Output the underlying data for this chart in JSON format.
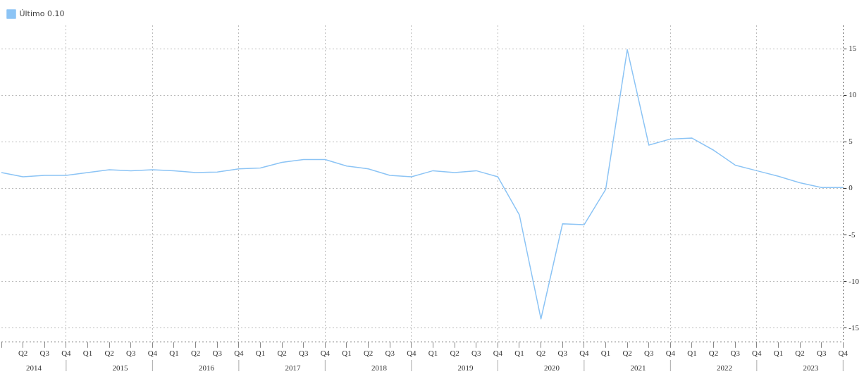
{
  "chart_data": {
    "type": "line",
    "categories": [
      null,
      "Q2",
      "Q3",
      "Q4",
      "Q1",
      "Q2",
      "Q3",
      "Q4",
      "Q1",
      "Q2",
      "Q3",
      "Q4",
      "Q1",
      "Q2",
      "Q3",
      "Q4",
      "Q1",
      "Q2",
      "Q3",
      "Q4",
      "Q1",
      "Q2",
      "Q3",
      "Q4",
      "Q1",
      "Q2",
      "Q3",
      "Q4",
      "Q1",
      "Q2",
      "Q3",
      "Q4",
      "Q1",
      "Q2",
      "Q3",
      "Q4",
      "Q1",
      "Q2",
      "Q3",
      "Q4"
    ],
    "annotations": [
      "2014",
      "2015",
      "2016",
      "2017",
      "2018",
      "2019",
      "2020",
      "2021",
      "2022",
      "2023"
    ],
    "series": [
      {
        "name": "Último 0.10",
        "color": "#8cc4f5",
        "values": [
          1.7,
          1.25,
          1.4,
          1.4,
          1.7,
          2.0,
          1.9,
          2.0,
          1.9,
          1.7,
          1.75,
          2.1,
          2.2,
          2.8,
          3.1,
          3.1,
          2.4,
          2.1,
          1.4,
          1.25,
          1.9,
          1.7,
          1.9,
          1.25,
          -2.85,
          -14.0,
          -3.8,
          -3.9,
          -0.1,
          14.9,
          4.65,
          5.3,
          5.4,
          4.1,
          2.5,
          1.9,
          1.3,
          0.6,
          0.1,
          0.1
        ]
      }
    ],
    "ylim": [
      -16.5,
      17.5
    ],
    "yticks": [
      -15,
      -10,
      -5,
      0,
      5,
      10,
      15
    ],
    "grid": true,
    "legend": "top left",
    "marker": "none",
    "line_style": "solid"
  }
}
